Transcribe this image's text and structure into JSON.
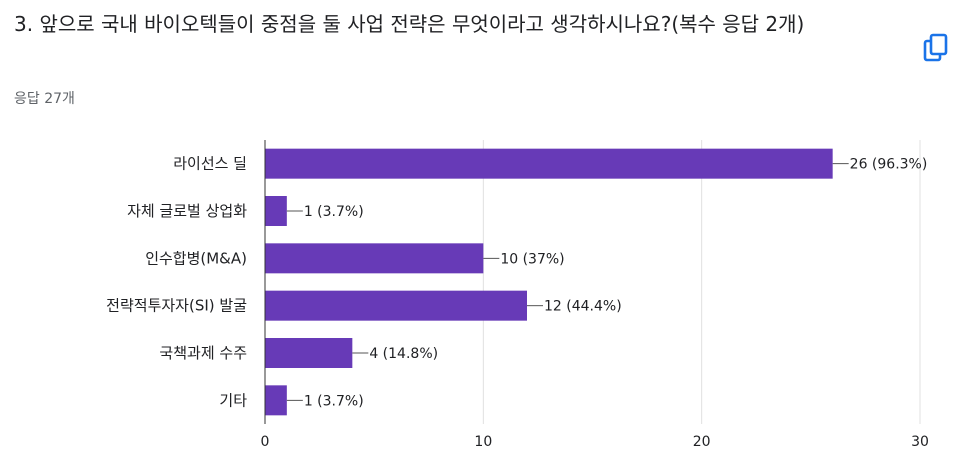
{
  "header": {
    "question_title": "3. 앞으로 국내 바이오텍들이 중점을 둘 사업 전략은 무엇이라고 생각하시나요?(복수 응답 2개)",
    "response_count": "응답 27개"
  },
  "icons": {
    "copy": "copy-icon"
  },
  "colors": {
    "bar": "#673ab7",
    "grid": "#e0e0e0",
    "axis": "#333333",
    "text": "#202124"
  },
  "chart_data": {
    "type": "bar",
    "orientation": "horizontal",
    "categories": [
      "라이선스 딜",
      "자체 글로벌 상업화",
      "인수합병(M&A)",
      "전략적투자자(SI) 발굴",
      "국책과제 수주",
      "기타"
    ],
    "values": [
      26,
      1,
      10,
      12,
      4,
      1
    ],
    "data_labels": [
      "26 (96.3%)",
      "1 (3.7%)",
      "10 (37%)",
      "12 (44.4%)",
      "4 (14.8%)",
      "1 (3.7%)"
    ],
    "xlim": [
      0,
      30
    ],
    "xticks": [
      0,
      10,
      20,
      30
    ],
    "grid": true
  }
}
